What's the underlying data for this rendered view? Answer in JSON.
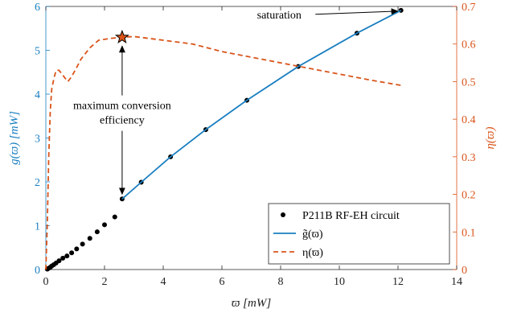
{
  "chart_data": {
    "type": "line",
    "xlabel": "ϖ [mW]",
    "ylabel_left": "g(ϖ) [mW]",
    "ylabel_right": "η(ϖ)",
    "xlim": [
      0,
      14
    ],
    "ylim_left": [
      0,
      6
    ],
    "ylim_right": [
      0,
      0.7
    ],
    "x_ticks": [
      "0",
      "2",
      "4",
      "6",
      "8",
      "10",
      "12",
      "14"
    ],
    "y_left_ticks": [
      "0",
      "1",
      "2",
      "3",
      "4",
      "5",
      "6"
    ],
    "y_right_ticks": [
      "0",
      "0.1",
      "0.2",
      "0.3",
      "0.4",
      "0.5",
      "0.6",
      "0.7"
    ],
    "grid": false,
    "legend_position": "bottom-right",
    "colors": {
      "left_axis": "#1a7fc1",
      "right_axis": "#d9541a",
      "points": "#000000"
    },
    "series": [
      {
        "name": "P211B RF-EH circuit",
        "kind": "scatter",
        "axis": "left",
        "points": [
          [
            0.05,
            0.01
          ],
          [
            0.1,
            0.03
          ],
          [
            0.15,
            0.05
          ],
          [
            0.2,
            0.08
          ],
          [
            0.27,
            0.11
          ],
          [
            0.35,
            0.15
          ],
          [
            0.45,
            0.2
          ],
          [
            0.58,
            0.26
          ],
          [
            0.72,
            0.31
          ],
          [
            0.88,
            0.38
          ],
          [
            1.05,
            0.47
          ],
          [
            1.25,
            0.58
          ],
          [
            1.5,
            0.71
          ],
          [
            1.75,
            0.86
          ],
          [
            2.0,
            1.02
          ],
          [
            2.35,
            1.2
          ],
          [
            2.6,
            1.61
          ],
          [
            3.25,
            1.99
          ],
          [
            4.25,
            2.57
          ],
          [
            5.45,
            3.19
          ],
          [
            6.85,
            3.86
          ],
          [
            8.6,
            4.63
          ],
          [
            10.6,
            5.39
          ],
          [
            12.1,
            5.91
          ]
        ]
      },
      {
        "name": "g̃(ϖ)",
        "kind": "line",
        "axis": "left",
        "points": [
          [
            2.6,
            1.61
          ],
          [
            3.25,
            1.99
          ],
          [
            4.25,
            2.57
          ],
          [
            5.45,
            3.19
          ],
          [
            6.85,
            3.86
          ],
          [
            8.6,
            4.63
          ],
          [
            10.6,
            5.39
          ],
          [
            12.1,
            5.91
          ]
        ]
      },
      {
        "name": "η(ϖ)",
        "kind": "line",
        "dashed": true,
        "axis": "right",
        "points": [
          [
            0.0,
            0.0
          ],
          [
            0.05,
            0.12
          ],
          [
            0.1,
            0.3
          ],
          [
            0.15,
            0.42
          ],
          [
            0.2,
            0.48
          ],
          [
            0.28,
            0.51
          ],
          [
            0.35,
            0.53
          ],
          [
            0.45,
            0.53
          ],
          [
            0.55,
            0.52
          ],
          [
            0.65,
            0.51
          ],
          [
            0.75,
            0.5
          ],
          [
            0.85,
            0.51
          ],
          [
            1.0,
            0.53
          ],
          [
            1.2,
            0.56
          ],
          [
            1.5,
            0.59
          ],
          [
            1.8,
            0.61
          ],
          [
            2.2,
            0.615
          ],
          [
            2.6,
            0.618
          ],
          [
            3.0,
            0.62
          ],
          [
            4.0,
            0.61
          ],
          [
            5.0,
            0.6
          ],
          [
            6.0,
            0.58
          ],
          [
            7.0,
            0.565
          ],
          [
            8.0,
            0.55
          ],
          [
            9.0,
            0.535
          ],
          [
            10.0,
            0.52
          ],
          [
            11.0,
            0.505
          ],
          [
            12.1,
            0.49
          ]
        ]
      }
    ],
    "annotations": [
      {
        "text": "saturation",
        "x": 8.5,
        "y_left": 5.82
      },
      {
        "text": "maximum conversion",
        "x": 2.6,
        "y_left": 3.75
      },
      {
        "text": "efficiency",
        "x": 2.6,
        "y_left": 3.42
      }
    ],
    "max_point": {
      "x": 2.6,
      "y_right": 0.618
    }
  }
}
